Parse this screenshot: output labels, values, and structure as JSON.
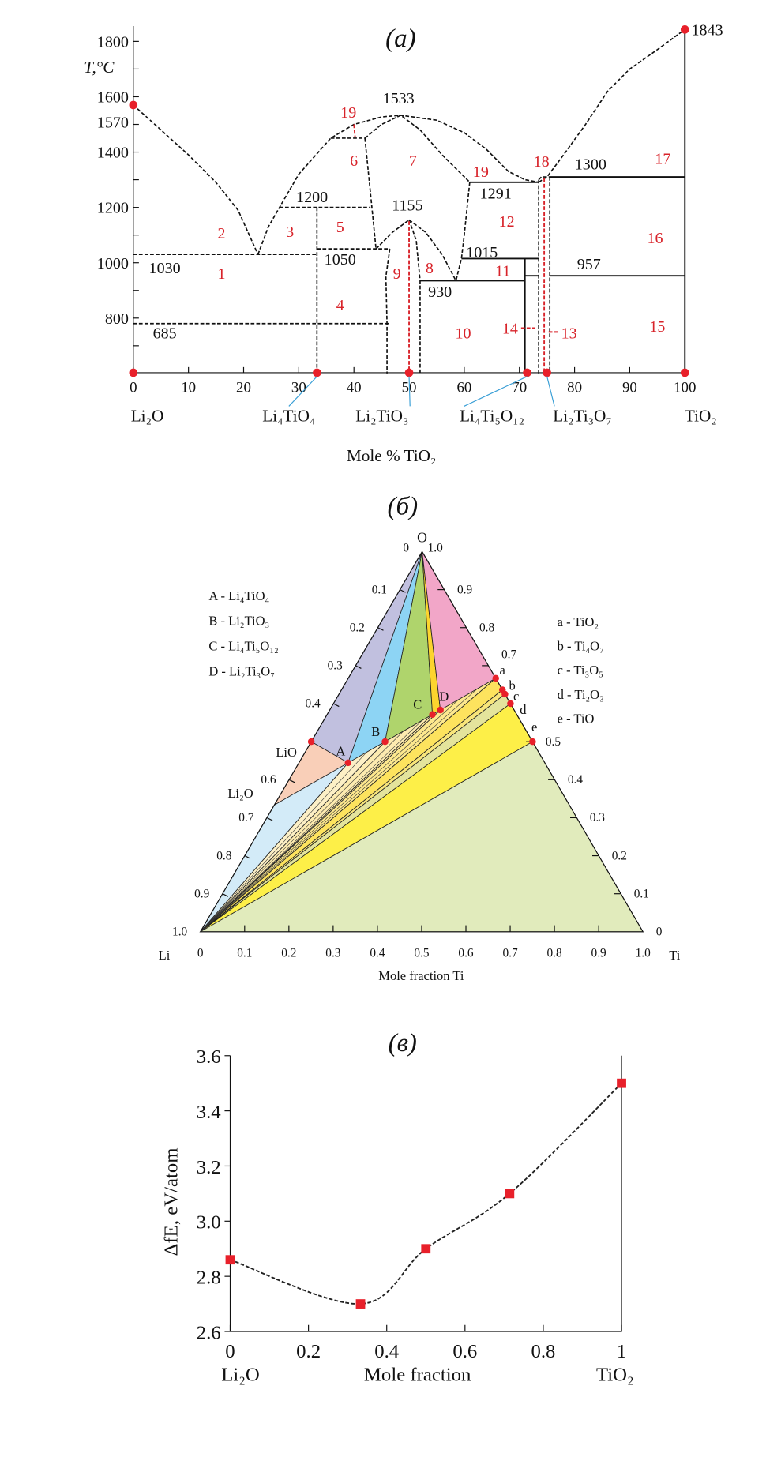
{
  "chart_data": [
    {
      "type": "line",
      "title": "(a)",
      "ylabel": "T,°C",
      "xlabel": "Mole % TiO₂",
      "xlim": [
        0,
        100
      ],
      "ylim": [
        600,
        1850
      ],
      "xticks": [
        "0",
        "10",
        "20",
        "30",
        "40",
        "50",
        "60",
        "70",
        "80",
        "90",
        "100"
      ],
      "yticks": [
        "800",
        "1000",
        "1200",
        "1400",
        "1600",
        "1800"
      ],
      "colors": {
        "line": "#111111",
        "annotation": "#d8232a",
        "marker": "#e8202a",
        "leader": "#3a9fd6"
      },
      "boundaries": [
        {
          "style": "dashed",
          "points": [
            [
              0,
              1570
            ],
            [
              5,
              1480
            ],
            [
              10,
              1390
            ],
            [
              15,
              1290
            ],
            [
              19,
              1190
            ],
            [
              22.6,
              1030
            ]
          ]
        },
        {
          "style": "dashed",
          "points": [
            [
              22.6,
              1030
            ],
            [
              24.5,
              1130
            ],
            [
              26.5,
              1200
            ],
            [
              30,
              1320
            ],
            [
              35.8,
              1450
            ],
            [
              40,
              1500
            ],
            [
              45,
              1527
            ],
            [
              48.5,
              1533
            ],
            [
              55,
              1515
            ],
            [
              60,
              1470
            ],
            [
              64,
              1410
            ],
            [
              68,
              1330
            ],
            [
              71,
              1300
            ],
            [
              73.5,
              1291
            ]
          ]
        },
        {
          "style": "dashed",
          "points": [
            [
              42,
              1450
            ],
            [
              45,
              1500
            ],
            [
              48.5,
              1533
            ],
            [
              52,
              1480
            ],
            [
              56,
              1390
            ],
            [
              61,
              1291
            ]
          ]
        },
        {
          "style": "dashed",
          "points": [
            [
              35.8,
              1450
            ],
            [
              42,
              1450
            ]
          ]
        },
        {
          "style": "dashed",
          "points": [
            [
              42,
              1450
            ],
            [
              43,
              1250
            ],
            [
              44,
              1050
            ]
          ]
        },
        {
          "style": "dashed",
          "points": [
            [
              26.5,
              1200
            ],
            [
              43,
              1200
            ]
          ]
        },
        {
          "style": "dashed",
          "points": [
            [
              33.3,
              1200
            ],
            [
              33.3,
              600
            ]
          ]
        },
        {
          "style": "dashed",
          "points": [
            [
              0,
              1030
            ],
            [
              33.3,
              1030
            ]
          ]
        },
        {
          "style": "dashed",
          "points": [
            [
              33.3,
              1050
            ],
            [
              46.5,
              1050
            ]
          ]
        },
        {
          "style": "dashed",
          "points": [
            [
              0,
              780
            ],
            [
              46.5,
              780
            ]
          ]
        },
        {
          "style": "dashed",
          "points": [
            [
              44,
              1050
            ],
            [
              47,
              1110
            ],
            [
              50,
              1155
            ]
          ]
        },
        {
          "style": "dashed",
          "points": [
            [
              46.5,
              1050
            ],
            [
              45.8,
              950
            ],
            [
              46,
              780
            ],
            [
              46,
              600
            ]
          ]
        },
        {
          "style": "dashed",
          "points": [
            [
              50,
              1155
            ],
            [
              51.3,
              1080
            ],
            [
              52,
              935
            ],
            [
              52,
              600
            ]
          ]
        },
        {
          "style": "dashed",
          "points": [
            [
              50,
              1155
            ],
            [
              53,
              1110
            ],
            [
              56,
              1030
            ],
            [
              58.5,
              935
            ]
          ]
        },
        {
          "style": "dashed",
          "points": [
            [
              61,
              1291
            ],
            [
              60,
              1100
            ],
            [
              59.5,
              1015
            ],
            [
              58.5,
              935
            ]
          ]
        },
        {
          "style": "dashed",
          "points": [
            [
              73.5,
              1300
            ],
            [
              73.5,
              600
            ]
          ]
        },
        {
          "style": "dashed",
          "points": [
            [
              75.5,
              1310
            ],
            [
              75.5,
              600
            ]
          ]
        },
        {
          "style": "dashed",
          "points": [
            [
              73.5,
              1300
            ],
            [
              74,
              1310
            ],
            [
              75.5,
              1310
            ]
          ]
        },
        {
          "style": "dashed",
          "points": [
            [
              73.5,
              1291
            ],
            [
              75,
              1310
            ],
            [
              78,
              1390
            ],
            [
              82,
              1500
            ],
            [
              86,
              1620
            ],
            [
              90,
              1700
            ],
            [
              95,
              1770
            ],
            [
              100,
              1843
            ]
          ]
        },
        {
          "style": "solid",
          "points": [
            [
              52,
              935
            ],
            [
              71,
              935
            ]
          ]
        },
        {
          "style": "solid",
          "points": [
            [
              59.5,
              1015
            ],
            [
              73.5,
              1015
            ]
          ]
        },
        {
          "style": "solid",
          "points": [
            [
              71,
              1015
            ],
            [
              71,
              600
            ]
          ]
        },
        {
          "style": "solid",
          "points": [
            [
              71,
              953
            ],
            [
              73.5,
              953
            ]
          ]
        },
        {
          "style": "solid",
          "points": [
            [
              75.5,
              953
            ],
            [
              100,
              953
            ]
          ]
        },
        {
          "style": "solid",
          "points": [
            [
              61,
              1291
            ],
            [
              73.5,
              1291
            ]
          ]
        },
        {
          "style": "solid",
          "points": [
            [
              75.5,
              1310
            ],
            [
              100,
              1310
            ]
          ]
        },
        {
          "style": "solid",
          "points": [
            [
              100,
              600
            ],
            [
              100,
              1843
            ]
          ]
        },
        {
          "style": "red",
          "points": [
            [
              50,
              1150
            ],
            [
              50,
              600
            ]
          ]
        },
        {
          "style": "red",
          "points": [
            [
              74.5,
              1305
            ],
            [
              74.5,
              600
            ]
          ]
        },
        {
          "style": "red",
          "points": [
            [
              40,
              1500
            ],
            [
              40.2,
              1455
            ]
          ]
        },
        {
          "style": "red",
          "points": [
            [
              70.3,
              764
            ],
            [
              72.8,
              764
            ]
          ]
        },
        {
          "style": "red",
          "points": [
            [
              75.3,
              750
            ],
            [
              77.2,
              750
            ]
          ]
        }
      ],
      "temperature_labels": [
        {
          "text": "1533",
          "x": 48.1,
          "T": 1596
        },
        {
          "text": "1200",
          "x": 32.4,
          "T": 1239
        },
        {
          "text": "1155",
          "x": 49.7,
          "T": 1209
        },
        {
          "text": "1030",
          "x": 5.7,
          "T": 983
        },
        {
          "text": "1050",
          "x": 37.5,
          "T": 1013
        },
        {
          "text": "685",
          "x": 5.7,
          "T": 747
        },
        {
          "text": "1291",
          "x": 65.7,
          "T": 1252
        },
        {
          "text": "1300",
          "x": 82.9,
          "T": 1357
        },
        {
          "text": "1015",
          "x": 63.2,
          "T": 1040
        },
        {
          "text": "957",
          "x": 82.6,
          "T": 997
        },
        {
          "text": "930",
          "x": 55.6,
          "T": 896
        }
      ],
      "region_labels": [
        {
          "text": "1",
          "x": 16,
          "T": 963
        },
        {
          "text": "2",
          "x": 16,
          "T": 1108
        },
        {
          "text": "3",
          "x": 28.4,
          "T": 1114
        },
        {
          "text": "4",
          "x": 37.5,
          "T": 848
        },
        {
          "text": "5",
          "x": 37.5,
          "T": 1131
        },
        {
          "text": "6",
          "x": 40,
          "T": 1370
        },
        {
          "text": "7",
          "x": 50.7,
          "T": 1370
        },
        {
          "text": "8",
          "x": 53.7,
          "T": 983
        },
        {
          "text": "9",
          "x": 47.8,
          "T": 963
        },
        {
          "text": "10",
          "x": 59.8,
          "T": 747
        },
        {
          "text": "11",
          "x": 67,
          "T": 973
        },
        {
          "text": "12",
          "x": 67.7,
          "T": 1151
        },
        {
          "text": "13",
          "x": 79,
          "T": 747
        },
        {
          "text": "14",
          "x": 68.3,
          "T": 764
        },
        {
          "text": "15",
          "x": 95,
          "T": 771
        },
        {
          "text": "16",
          "x": 94.6,
          "T": 1091
        },
        {
          "text": "17",
          "x": 96,
          "T": 1377
        },
        {
          "text": "18",
          "x": 74,
          "T": 1367
        },
        {
          "text": "19",
          "x": 39,
          "T": 1545
        },
        {
          "text": "19",
          "x": 63,
          "T": 1330
        }
      ],
      "melting_points": [
        {
          "text": "1570",
          "x": 0,
          "T": 1570
        },
        {
          "text": "1843",
          "x": 100,
          "T": 1843
        }
      ],
      "compounds": [
        {
          "name": "Li₂O",
          "x": 0
        },
        {
          "name": "Li₄TiO₄",
          "x": 33.3
        },
        {
          "name": "Li₂TiO₃",
          "x": 50
        },
        {
          "name": "Li₄Ti₅O₁₂",
          "x": 71.4
        },
        {
          "name": "Li₂Ti₃O₇",
          "x": 75
        },
        {
          "name": "TiO₂",
          "x": 100
        }
      ]
    },
    {
      "type": "ternary",
      "title": "(б)",
      "xlabel": "Mole fraction Ti",
      "vertices": {
        "Li": "Li",
        "Ti": "Ti",
        "O": "O"
      },
      "bottom_ticks": [
        "0",
        "0.1",
        "0.2",
        "0.3",
        "0.4",
        "0.5",
        "0.6",
        "0.7",
        "0.8",
        "0.9",
        "1.0"
      ],
      "left_ticks": [
        {
          "v": 0,
          "t": "0"
        },
        {
          "v": 0.1,
          "t": "0.1"
        },
        {
          "v": 0.2,
          "t": "0.2"
        },
        {
          "v": 0.3,
          "t": "0.3"
        },
        {
          "v": 0.4,
          "t": "0.4"
        },
        {
          "v": 0.6,
          "t": "0.6"
        },
        {
          "v": 0.7,
          "t": "0.7"
        },
        {
          "v": 0.8,
          "t": "0.8"
        },
        {
          "v": 0.9,
          "t": "0.9"
        },
        {
          "v": 1.0,
          "t": "1.0"
        }
      ],
      "right_ticks": [
        {
          "v": 1.0,
          "t": "1.0"
        },
        {
          "v": 0.9,
          "t": "0.9"
        },
        {
          "v": 0.8,
          "t": "0.8"
        },
        {
          "v": 0.7,
          "t": "0.7"
        },
        {
          "v": 0.5,
          "t": "0.5"
        },
        {
          "v": 0.4,
          "t": "0.4"
        },
        {
          "v": 0.3,
          "t": "0.3"
        },
        {
          "v": 0.2,
          "t": "0.2"
        },
        {
          "v": 0.1,
          "t": "0.1"
        },
        {
          "v": 0,
          "t": "0"
        }
      ],
      "points": [
        {
          "id": "LiO",
          "label": "LiO",
          "Ti": 0,
          "O": 0.5
        },
        {
          "id": "Li2O",
          "label": "Li₂O",
          "Ti": 0,
          "O": 0.3333
        },
        {
          "id": "A",
          "label": "A",
          "Ti": 0.1111,
          "O": 0.4444
        },
        {
          "id": "B",
          "label": "B",
          "Ti": 0.1667,
          "O": 0.5
        },
        {
          "id": "C",
          "label": "C",
          "Ti": 0.2381,
          "O": 0.5714
        },
        {
          "id": "D",
          "label": "D",
          "Ti": 0.25,
          "O": 0.5833
        },
        {
          "id": "a",
          "label": "a",
          "Ti": 0.3333,
          "O": 0.6667
        },
        {
          "id": "b",
          "label": "b",
          "Ti": 0.3636,
          "O": 0.6364
        },
        {
          "id": "c",
          "label": "c",
          "Ti": 0.375,
          "O": 0.625
        },
        {
          "id": "d",
          "label": "d",
          "Ti": 0.4,
          "O": 0.6
        },
        {
          "id": "e",
          "label": "e",
          "Ti": 0.5,
          "O": 0.5
        }
      ],
      "regions": [
        {
          "vertices": [
            "O",
            "LiO",
            "A"
          ],
          "color": "#c1c0df"
        },
        {
          "vertices": [
            "O",
            "A",
            "B"
          ],
          "color": "#8dd4f4"
        },
        {
          "vertices": [
            "O",
            "B",
            "C"
          ],
          "color": "#afd46c"
        },
        {
          "vertices": [
            "O",
            "C",
            "D"
          ],
          "color": "#fcd42e"
        },
        {
          "vertices": [
            "O",
            "D",
            "a"
          ],
          "color": "#f2a6c8"
        },
        {
          "vertices": [
            "LiO",
            "A",
            "Li2O"
          ],
          "color": "#f9cfb8"
        },
        {
          "vertices": [
            "Li2O",
            "A",
            "Li"
          ],
          "color": "#d3ebf8"
        },
        {
          "vertices": [
            "Li",
            "A",
            "B"
          ],
          "color": "#fdf0c6"
        },
        {
          "vertices": [
            "Li",
            "B",
            "C"
          ],
          "color": "#fdebb0"
        },
        {
          "vertices": [
            "Li",
            "C",
            "D"
          ],
          "color": "#fde8a0"
        },
        {
          "vertices": [
            "Li",
            "D",
            "a"
          ],
          "color": "#fde88e"
        },
        {
          "vertices": [
            "Li",
            "a",
            "b"
          ],
          "color": "#fde35e"
        },
        {
          "vertices": [
            "Li",
            "b",
            "c"
          ],
          "color": "#f9e67a"
        },
        {
          "vertices": [
            "Li",
            "c",
            "d"
          ],
          "color": "#e4e49c"
        },
        {
          "vertices": [
            "Li",
            "d",
            "e"
          ],
          "color": "#fdef48"
        },
        {
          "vertices": [
            "Li",
            "e",
            "Ti"
          ],
          "color": "#e1ebbc"
        }
      ],
      "legend_left": [
        "A - Li₄TiO₄",
        "B - Li₂TiO₃",
        "C - Li₄Ti₅O₁₂",
        "D - Li₂Ti₃O₇"
      ],
      "legend_right": [
        "a - TiO₂",
        "b - Ti₄O₇",
        "c - Ti₃O₅",
        "d - Ti₂O₃",
        "e - TiO"
      ]
    },
    {
      "type": "line",
      "title": "(в)",
      "ylabel": "ΔfE, eV/atom",
      "xlabel": "Mole fraction",
      "x_left_label": "Li₂O",
      "x_right_label": "TiO₂",
      "xlim": [
        0,
        1
      ],
      "ylim": [
        2.6,
        3.6
      ],
      "xticks": [
        "0",
        "0.2",
        "0.4",
        "0.6",
        "0.8",
        "1"
      ],
      "yticks": [
        "2.6",
        "2.8",
        "3.0",
        "3.2",
        "3.4",
        "3.6"
      ],
      "x": [
        0,
        0.333,
        0.5,
        0.714,
        1.0
      ],
      "y": [
        2.86,
        2.7,
        2.9,
        3.1,
        3.5
      ],
      "marker_color": "#e8202a",
      "line_style": "dashed"
    }
  ]
}
